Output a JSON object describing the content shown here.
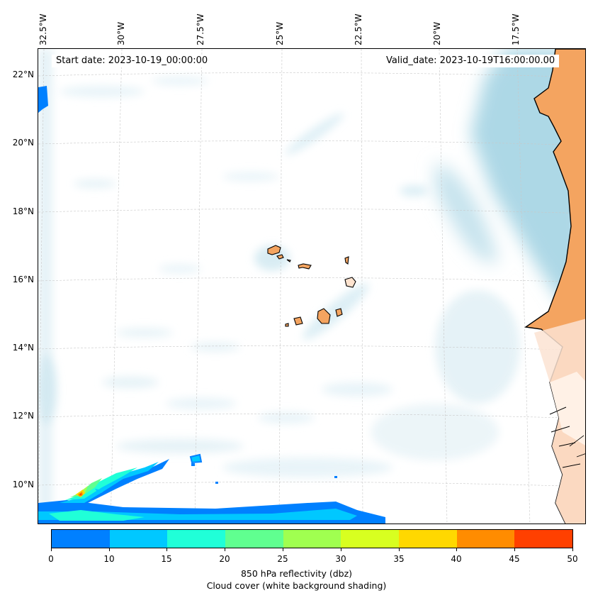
{
  "map": {
    "start_date": "Start date: 2023-10-19_00:00:00",
    "valid_date": "Valid_date: 2023-10-19T16:00:00.00",
    "longitude_labels": [
      "32.5°W",
      "30°W",
      "27.5°W",
      "25°W",
      "22.5°W",
      "20°W",
      "17.5°W"
    ],
    "latitude_labels": [
      "22°N",
      "20°N",
      "18°N",
      "16°N",
      "14°N",
      "12°N",
      "10°N"
    ],
    "colors": {
      "land": "#f4a460",
      "cloud_light": "#d6ecf3",
      "cloud_dense": "#add8e6",
      "coastline": "#000000"
    }
  },
  "colorbar": {
    "ticks": [
      "0",
      "10",
      "15",
      "20",
      "25",
      "30",
      "35",
      "40",
      "45",
      "50"
    ],
    "colors": [
      "#0080ff",
      "#00c8ff",
      "#20ffd8",
      "#60ff90",
      "#a0ff50",
      "#d8ff20",
      "#ffd800",
      "#ff8c00",
      "#ff4000"
    ],
    "label_line1": "850 hPa reflectivity (dbz)",
    "label_line2": "Cloud cover (white background shading)"
  }
}
